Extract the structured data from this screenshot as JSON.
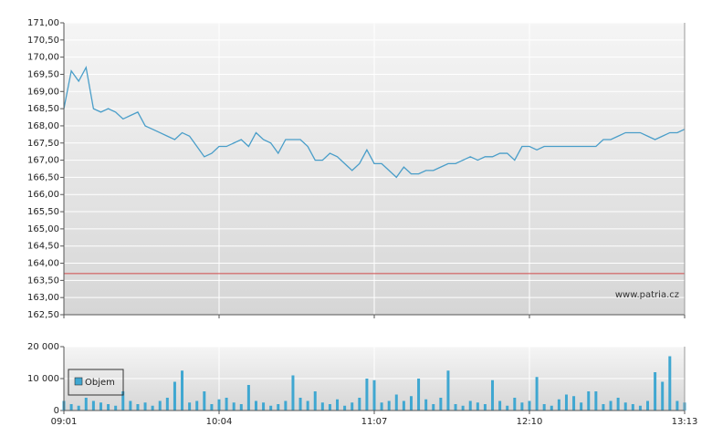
{
  "chart_data": [
    {
      "type": "line",
      "watermark": "www.patria.cz",
      "grid": true,
      "x": [
        "09:01",
        "09:04",
        "09:07",
        "09:10",
        "09:13",
        "09:16",
        "09:19",
        "09:22",
        "09:25",
        "09:28",
        "09:31",
        "09:34",
        "09:37",
        "09:40",
        "09:43",
        "09:46",
        "09:49",
        "09:52",
        "09:55",
        "09:58",
        "10:01",
        "10:04",
        "10:07",
        "10:10",
        "10:13",
        "10:16",
        "10:19",
        "10:22",
        "10:25",
        "10:28",
        "10:31",
        "10:34",
        "10:37",
        "10:40",
        "10:43",
        "10:46",
        "10:49",
        "10:52",
        "10:55",
        "10:58",
        "11:01",
        "11:04",
        "11:07",
        "11:10",
        "11:13",
        "11:16",
        "11:19",
        "11:22",
        "11:25",
        "11:28",
        "11:31",
        "11:34",
        "11:37",
        "11:40",
        "11:43",
        "11:46",
        "11:49",
        "11:52",
        "11:55",
        "11:58",
        "12:01",
        "12:04",
        "12:07",
        "12:10",
        "12:13",
        "12:16",
        "12:19",
        "12:22",
        "12:25",
        "12:28",
        "12:31",
        "12:34",
        "12:37",
        "12:40",
        "12:43",
        "12:46",
        "12:49",
        "12:52",
        "12:55",
        "12:58",
        "13:01",
        "13:04",
        "13:07",
        "13:10",
        "13:13"
      ],
      "xlim": [
        "09:01",
        "13:13"
      ],
      "series": [
        {
          "color": "#4a9ec9",
          "values": [
            168.5,
            169.6,
            169.3,
            169.7,
            168.5,
            168.4,
            168.5,
            168.4,
            168.2,
            168.3,
            168.4,
            168.0,
            167.9,
            167.8,
            167.7,
            167.6,
            167.8,
            167.7,
            167.4,
            167.1,
            167.2,
            167.4,
            167.4,
            167.5,
            167.6,
            167.4,
            167.8,
            167.6,
            167.5,
            167.2,
            167.6,
            167.6,
            167.6,
            167.4,
            167.0,
            167.0,
            167.2,
            167.1,
            166.9,
            166.7,
            166.9,
            167.3,
            166.9,
            166.9,
            166.7,
            166.5,
            166.8,
            166.6,
            166.6,
            166.7,
            166.7,
            166.8,
            166.9,
            166.9,
            167.0,
            167.1,
            167.0,
            167.1,
            167.1,
            167.2,
            167.2,
            167.0,
            167.4,
            167.4,
            167.3,
            167.4,
            167.4,
            167.4,
            167.4,
            167.4,
            167.4,
            167.4,
            167.4,
            167.6,
            167.6,
            167.7,
            167.8,
            167.8,
            167.8,
            167.7,
            167.6,
            167.7,
            167.8,
            167.8,
            167.9
          ]
        }
      ],
      "reference_value": 163.7,
      "reference_color": "#d04848",
      "ylim": [
        162.5,
        171
      ],
      "yticks": [
        {
          "value": 162.5,
          "label": "162,50"
        },
        {
          "value": 163,
          "label": "163,00"
        },
        {
          "value": 163.5,
          "label": "163,50"
        },
        {
          "value": 164,
          "label": "164,00"
        },
        {
          "value": 164.5,
          "label": "164,50"
        },
        {
          "value": 165,
          "label": "165,00"
        },
        {
          "value": 165.5,
          "label": "165,50"
        },
        {
          "value": 166,
          "label": "166,00"
        },
        {
          "value": 166.5,
          "label": "166,50"
        },
        {
          "value": 167,
          "label": "167,00"
        },
        {
          "value": 167.5,
          "label": "167,50"
        },
        {
          "value": 168,
          "label": "168,00"
        },
        {
          "value": 168.5,
          "label": "168,50"
        },
        {
          "value": 169,
          "label": "169,00"
        },
        {
          "value": 169.5,
          "label": "169,50"
        },
        {
          "value": 170,
          "label": "170,00"
        },
        {
          "value": 170.5,
          "label": "170,50"
        },
        {
          "value": 171,
          "label": "171,00"
        }
      ]
    },
    {
      "type": "bar",
      "grid": true,
      "x": [
        "09:01",
        "09:04",
        "09:07",
        "09:10",
        "09:13",
        "09:16",
        "09:19",
        "09:22",
        "09:25",
        "09:28",
        "09:31",
        "09:34",
        "09:37",
        "09:40",
        "09:43",
        "09:46",
        "09:49",
        "09:52",
        "09:55",
        "09:58",
        "10:01",
        "10:04",
        "10:07",
        "10:10",
        "10:13",
        "10:16",
        "10:19",
        "10:22",
        "10:25",
        "10:28",
        "10:31",
        "10:34",
        "10:37",
        "10:40",
        "10:43",
        "10:46",
        "10:49",
        "10:52",
        "10:55",
        "10:58",
        "11:01",
        "11:04",
        "11:07",
        "11:10",
        "11:13",
        "11:16",
        "11:19",
        "11:22",
        "11:25",
        "11:28",
        "11:31",
        "11:34",
        "11:37",
        "11:40",
        "11:43",
        "11:46",
        "11:49",
        "11:52",
        "11:55",
        "11:58",
        "12:01",
        "12:04",
        "12:07",
        "12:10",
        "12:13",
        "12:16",
        "12:19",
        "12:22",
        "12:25",
        "12:28",
        "12:31",
        "12:34",
        "12:37",
        "12:40",
        "12:43",
        "12:46",
        "12:49",
        "12:52",
        "12:55",
        "12:58",
        "13:01",
        "13:04",
        "13:07",
        "13:10",
        "13:13"
      ],
      "xlim": [
        "09:01",
        "13:13"
      ],
      "xticks": [
        "09:01",
        "10:04",
        "11:07",
        "12:10",
        "13:13"
      ],
      "series": [
        {
          "name": "Objem",
          "color": "#3fa7d1",
          "values": [
            3000,
            2000,
            1500,
            4000,
            3000,
            2500,
            2000,
            1500,
            6000,
            3000,
            2000,
            2500,
            1500,
            3000,
            4000,
            9000,
            12500,
            2500,
            3000,
            6000,
            2000,
            3500,
            4000,
            2500,
            2000,
            8000,
            3000,
            2500,
            1500,
            2000,
            3000,
            11000,
            4000,
            3000,
            6000,
            2500,
            2000,
            3500,
            1500,
            2500,
            4000,
            10000,
            9500,
            2500,
            3000,
            5000,
            3000,
            4500,
            10000,
            3500,
            2000,
            4000,
            12500,
            2000,
            1500,
            3000,
            2500,
            2000,
            9500,
            3000,
            1500,
            4000,
            2500,
            3000,
            10500,
            2000,
            1500,
            3500,
            5000,
            4500,
            2500,
            6000,
            6000,
            2000,
            3000,
            4000,
            2500,
            2000,
            1500,
            3000,
            12000,
            9000,
            17000,
            3000,
            2500
          ]
        }
      ],
      "ylim": [
        0,
        20000
      ],
      "yticks": [
        0,
        {
          "value": 10000,
          "label": "10 000"
        },
        {
          "value": 20000,
          "label": "20 000"
        }
      ]
    }
  ]
}
